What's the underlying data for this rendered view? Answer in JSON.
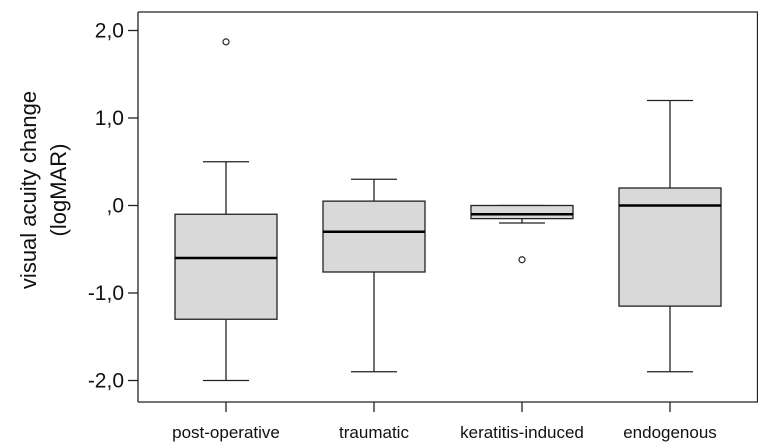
{
  "chart_data": {
    "type": "boxplot",
    "title": "",
    "xlabel": "",
    "ylabel_lines": [
      "visual acuity change",
      "(logMAR)"
    ],
    "ylim": [
      -2.3,
      2.2
    ],
    "yticks": [
      {
        "value": 2.0,
        "label": "2,0"
      },
      {
        "value": 1.0,
        "label": "1,0"
      },
      {
        "value": 0.0,
        "label": ",0"
      },
      {
        "value": -1.0,
        "label": "-1,0"
      },
      {
        "value": -2.0,
        "label": "-2,0"
      }
    ],
    "grid": false,
    "box_fill": "#d9d9d9",
    "line_color": "#222222",
    "categories": [
      "post-operative",
      "traumatic",
      "keratitis-induced",
      "endogenous"
    ],
    "boxes": [
      {
        "category": "post-operative",
        "whisker_low": -2.0,
        "q1": -1.3,
        "median": -0.6,
        "q3": -0.1,
        "whisker_high": 0.5,
        "outliers": [
          1.87
        ]
      },
      {
        "category": "traumatic",
        "whisker_low": -1.9,
        "q1": -0.76,
        "median": -0.3,
        "q3": 0.05,
        "whisker_high": 0.3,
        "outliers": []
      },
      {
        "category": "keratitis-induced",
        "whisker_low": -0.2,
        "q1": -0.15,
        "median": -0.1,
        "q3": 0.0,
        "whisker_high": 0.0,
        "outliers": [
          -0.62
        ]
      },
      {
        "category": "endogenous",
        "whisker_low": -1.9,
        "q1": -1.15,
        "median": 0.0,
        "q3": 0.2,
        "whisker_high": 1.2,
        "outliers": []
      }
    ]
  }
}
